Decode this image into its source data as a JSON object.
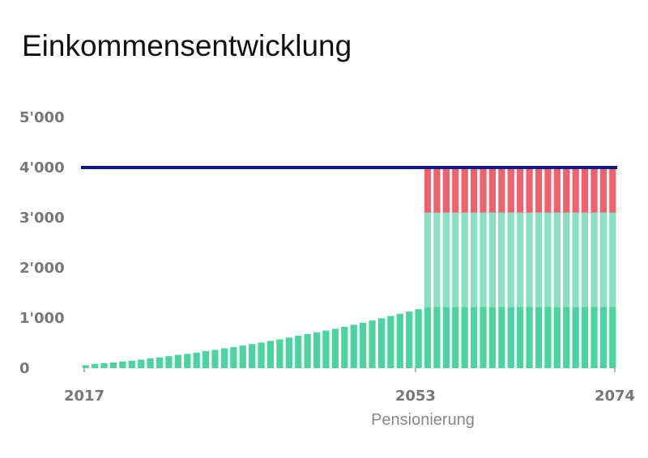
{
  "title": "Einkommensentwicklung",
  "colors": {
    "accumulation": "#4cd4a0",
    "pension_base": "#4cd4a0",
    "pension_mid": "#8ae0c0",
    "gap": "#f0636c",
    "target_line": "#0a1a8c",
    "axis_text": "#777777"
  },
  "chart_data": {
    "type": "bar",
    "stacked": true,
    "xlabel": "Pensionierung",
    "ylabel": "",
    "ylim": [
      0,
      5000
    ],
    "yticks": [
      0,
      1000,
      2000,
      3000,
      4000,
      5000
    ],
    "ytick_labels": [
      "0",
      "1'000",
      "2'000",
      "3'000",
      "4'000",
      "5'000"
    ],
    "xtick_labels": [
      "2017",
      "2053",
      "2074"
    ],
    "x_start": 2017,
    "x_end": 2074,
    "retirement_year": 2053,
    "target_line": 4000,
    "series": [
      {
        "values": [
          60,
          80,
          100,
          115,
          135,
          150,
          170,
          195,
          215,
          240,
          265,
          285,
          310,
          340,
          365,
          395,
          420,
          450,
          480,
          510,
          545,
          575,
          610,
          645,
          680,
          715,
          750,
          785,
          825,
          865,
          905,
          950,
          995,
          1040,
          1085,
          1130,
          1175,
          1220,
          1220,
          1220,
          1220,
          1220,
          1220,
          1220,
          1220,
          1220,
          1220,
          1220,
          1220,
          1220,
          1220,
          1220,
          1220,
          1220,
          1220,
          1220,
          1220,
          1220
        ]
      },
      {
        "values": [
          0,
          0,
          0,
          0,
          0,
          0,
          0,
          0,
          0,
          0,
          0,
          0,
          0,
          0,
          0,
          0,
          0,
          0,
          0,
          0,
          0,
          0,
          0,
          0,
          0,
          0,
          0,
          0,
          0,
          0,
          0,
          0,
          0,
          0,
          0,
          0,
          0,
          1880,
          1880,
          1880,
          1880,
          1880,
          1880,
          1880,
          1880,
          1880,
          1880,
          1880,
          1880,
          1880,
          1880,
          1880,
          1880,
          1880,
          1880,
          1880,
          1880,
          1880
        ]
      },
      {
        "values": [
          0,
          0,
          0,
          0,
          0,
          0,
          0,
          0,
          0,
          0,
          0,
          0,
          0,
          0,
          0,
          0,
          0,
          0,
          0,
          0,
          0,
          0,
          0,
          0,
          0,
          0,
          0,
          0,
          0,
          0,
          0,
          0,
          0,
          0,
          0,
          0,
          0,
          900,
          900,
          900,
          900,
          900,
          900,
          900,
          900,
          900,
          900,
          900,
          900,
          900,
          900,
          900,
          900,
          900,
          900,
          900,
          900,
          900
        ]
      }
    ]
  }
}
